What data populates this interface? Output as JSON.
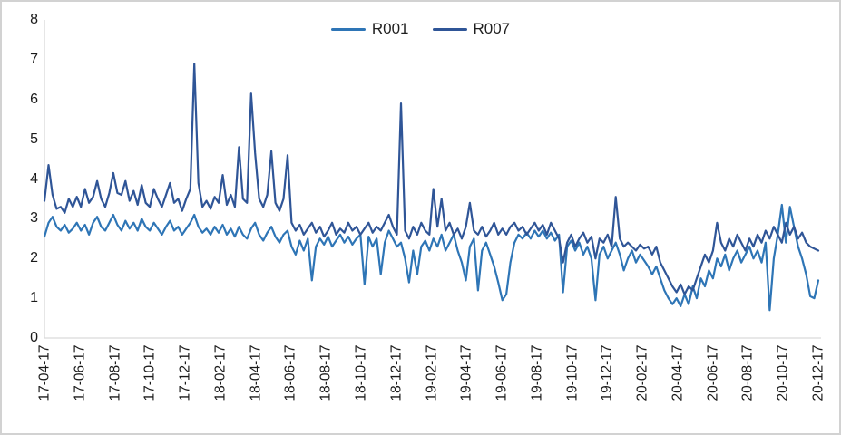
{
  "figure": {
    "background": "#FFFFFF",
    "border_color": "#D2D2D2",
    "axis_color": "#D9D9D9",
    "text_color": "#1A1A1A"
  },
  "legend": {
    "position": "top-center",
    "items": [
      {
        "label": "R001",
        "color": "#2E75B6"
      },
      {
        "label": "R007",
        "color": "#2F5597"
      }
    ]
  },
  "chart_data": {
    "type": "line",
    "title": "",
    "xlabel": "",
    "ylabel": "",
    "grid": false,
    "legend_position": "top-center",
    "ylim": [
      0,
      8
    ],
    "y_ticks": [
      8,
      7,
      6,
      5,
      4,
      3,
      2,
      1,
      0
    ],
    "x_tick_labels": [
      "17-04-17",
      "17-06-17",
      "17-08-17",
      "17-10-17",
      "17-12-17",
      "18-02-17",
      "18-04-17",
      "18-06-17",
      "18-08-17",
      "18-10-17",
      "18-12-17",
      "19-02-17",
      "19-04-17",
      "19-06-17",
      "19-08-17",
      "19-10-17",
      "19-12-17",
      "20-02-17",
      "20-04-17",
      "20-06-17",
      "20-08-17",
      "20-10-17",
      "20-12-17"
    ],
    "x_range_note": "weekly samples from 17-04-17 to 20-12-17",
    "series": [
      {
        "name": "R001",
        "color": "#2E75B6",
        "values": [
          2.55,
          2.9,
          3.05,
          2.8,
          2.7,
          2.85,
          2.65,
          2.75,
          2.9,
          2.7,
          2.85,
          2.6,
          2.9,
          3.05,
          2.8,
          2.7,
          2.9,
          3.1,
          2.85,
          2.7,
          2.95,
          2.75,
          2.9,
          2.7,
          3.0,
          2.8,
          2.7,
          2.9,
          2.75,
          2.6,
          2.8,
          2.95,
          2.7,
          2.8,
          2.6,
          2.75,
          2.9,
          3.1,
          2.8,
          2.65,
          2.75,
          2.6,
          2.8,
          2.65,
          2.85,
          2.6,
          2.75,
          2.55,
          2.8,
          2.6,
          2.5,
          2.75,
          2.9,
          2.6,
          2.45,
          2.65,
          2.8,
          2.55,
          2.4,
          2.6,
          2.7,
          2.3,
          2.1,
          2.45,
          2.2,
          2.5,
          1.45,
          2.3,
          2.5,
          2.35,
          2.55,
          2.3,
          2.45,
          2.6,
          2.4,
          2.55,
          2.35,
          2.5,
          2.6,
          1.35,
          2.55,
          2.3,
          2.5,
          1.6,
          2.4,
          2.7,
          2.5,
          2.3,
          2.4,
          2.0,
          1.4,
          2.2,
          1.6,
          2.3,
          2.45,
          2.2,
          2.5,
          2.3,
          2.6,
          2.2,
          2.4,
          2.6,
          2.2,
          1.9,
          1.45,
          2.3,
          2.5,
          1.2,
          2.2,
          2.4,
          2.1,
          1.8,
          1.4,
          0.95,
          1.1,
          1.9,
          2.4,
          2.6,
          2.5,
          2.65,
          2.5,
          2.7,
          2.55,
          2.7,
          2.5,
          2.65,
          2.45,
          2.6,
          1.15,
          2.3,
          2.45,
          2.2,
          2.4,
          2.1,
          2.3,
          2.0,
          0.95,
          2.1,
          2.3,
          2.0,
          2.2,
          2.4,
          2.1,
          1.7,
          2.0,
          2.2,
          1.9,
          2.1,
          1.95,
          1.8,
          1.6,
          1.8,
          1.5,
          1.2,
          1.0,
          0.85,
          1.0,
          0.8,
          1.1,
          0.85,
          1.3,
          1.0,
          1.5,
          1.3,
          1.7,
          1.5,
          2.0,
          1.8,
          2.1,
          1.7,
          2.0,
          2.2,
          1.9,
          2.1,
          2.3,
          2.0,
          2.2,
          1.9,
          2.4,
          0.7,
          2.0,
          2.6,
          3.35,
          2.4,
          3.3,
          2.8,
          2.3,
          2.0,
          1.6,
          1.05,
          1.0,
          1.45
        ]
      },
      {
        "name": "R007",
        "color": "#2F5597",
        "values": [
          3.45,
          4.35,
          3.6,
          3.25,
          3.3,
          3.15,
          3.5,
          3.3,
          3.55,
          3.3,
          3.75,
          3.4,
          3.55,
          3.95,
          3.5,
          3.3,
          3.65,
          4.15,
          3.65,
          3.6,
          3.95,
          3.45,
          3.7,
          3.35,
          3.85,
          3.4,
          3.3,
          3.75,
          3.5,
          3.3,
          3.6,
          3.9,
          3.4,
          3.5,
          3.2,
          3.5,
          3.75,
          6.9,
          3.9,
          3.3,
          3.45,
          3.25,
          3.55,
          3.4,
          4.1,
          3.35,
          3.6,
          3.3,
          4.8,
          3.5,
          3.4,
          6.15,
          4.65,
          3.5,
          3.3,
          3.6,
          4.7,
          3.4,
          3.2,
          3.5,
          4.6,
          2.9,
          2.7,
          2.85,
          2.6,
          2.75,
          2.9,
          2.65,
          2.8,
          2.55,
          2.7,
          2.9,
          2.6,
          2.75,
          2.65,
          2.9,
          2.7,
          2.8,
          2.6,
          2.75,
          2.9,
          2.65,
          2.8,
          2.7,
          2.9,
          3.1,
          2.8,
          2.6,
          5.9,
          2.7,
          2.5,
          2.8,
          2.6,
          2.9,
          2.7,
          2.6,
          3.75,
          2.8,
          3.5,
          2.7,
          2.9,
          2.6,
          2.75,
          2.5,
          2.8,
          3.4,
          2.7,
          2.6,
          2.8,
          2.55,
          2.7,
          2.9,
          2.6,
          2.75,
          2.6,
          2.8,
          2.9,
          2.7,
          2.8,
          2.6,
          2.75,
          2.9,
          2.7,
          2.85,
          2.6,
          2.9,
          2.7,
          2.5,
          1.9,
          2.4,
          2.6,
          2.3,
          2.5,
          2.65,
          2.4,
          2.55,
          2.0,
          2.5,
          2.4,
          2.6,
          2.3,
          3.55,
          2.5,
          2.3,
          2.4,
          2.3,
          2.2,
          2.35,
          2.25,
          2.3,
          2.1,
          2.3,
          1.9,
          1.7,
          1.5,
          1.3,
          1.15,
          1.35,
          1.1,
          1.3,
          1.2,
          1.5,
          1.8,
          2.1,
          1.9,
          2.2,
          2.9,
          2.4,
          2.2,
          2.5,
          2.3,
          2.6,
          2.4,
          2.2,
          2.5,
          2.3,
          2.6,
          2.4,
          2.7,
          2.5,
          2.8,
          2.6,
          2.4,
          2.9,
          2.6,
          2.8,
          2.5,
          2.65,
          2.4,
          2.3,
          2.25,
          2.2
        ]
      }
    ]
  }
}
